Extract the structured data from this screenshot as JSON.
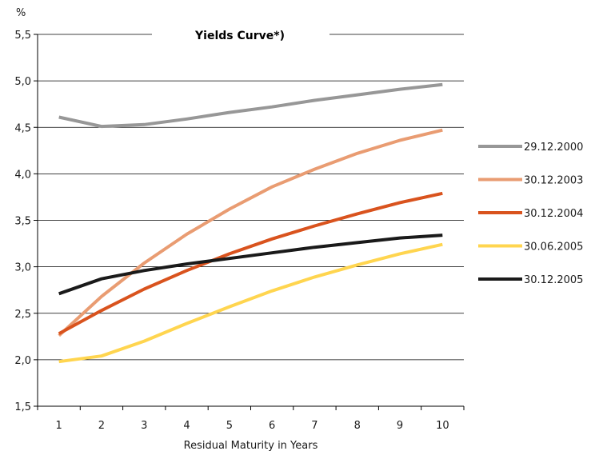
{
  "chart_data": {
    "type": "line",
    "title": "Yields Curve*)",
    "xlabel": "Residual Maturity in Years",
    "ylabel": "%",
    "x": [
      1,
      2,
      3,
      4,
      5,
      6,
      7,
      8,
      9,
      10
    ],
    "xticks": [
      "1",
      "2",
      "3",
      "4",
      "5",
      "6",
      "7",
      "8",
      "9",
      "10"
    ],
    "ylim": [
      1.5,
      5.5
    ],
    "yticks": [
      "1,5",
      "2,0",
      "2,5",
      "3,0",
      "3,5",
      "4,0",
      "4,5",
      "5,0",
      "5,5"
    ],
    "grid": "horizontal",
    "legend_position": "right",
    "series": [
      {
        "name": "29.12.2000",
        "color": "#979797",
        "values": [
          4.61,
          4.51,
          4.53,
          4.59,
          4.66,
          4.72,
          4.79,
          4.85,
          4.91,
          4.96
        ]
      },
      {
        "name": "30.12.2003",
        "color": "#E99C72",
        "values": [
          2.26,
          2.68,
          3.04,
          3.35,
          3.62,
          3.86,
          4.05,
          4.22,
          4.36,
          4.47
        ]
      },
      {
        "name": "30.12.2004",
        "color": "#D9531E",
        "values": [
          2.28,
          2.53,
          2.76,
          2.96,
          3.14,
          3.3,
          3.44,
          3.57,
          3.69,
          3.79
        ]
      },
      {
        "name": "30.06.2005",
        "color": "#FFD54F",
        "values": [
          1.98,
          2.04,
          2.2,
          2.39,
          2.57,
          2.74,
          2.89,
          3.02,
          3.14,
          3.24
        ]
      },
      {
        "name": "30.12.2005",
        "color": "#1A1A1A",
        "values": [
          2.71,
          2.87,
          2.96,
          3.03,
          3.09,
          3.15,
          3.21,
          3.26,
          3.31,
          3.34
        ]
      }
    ]
  }
}
